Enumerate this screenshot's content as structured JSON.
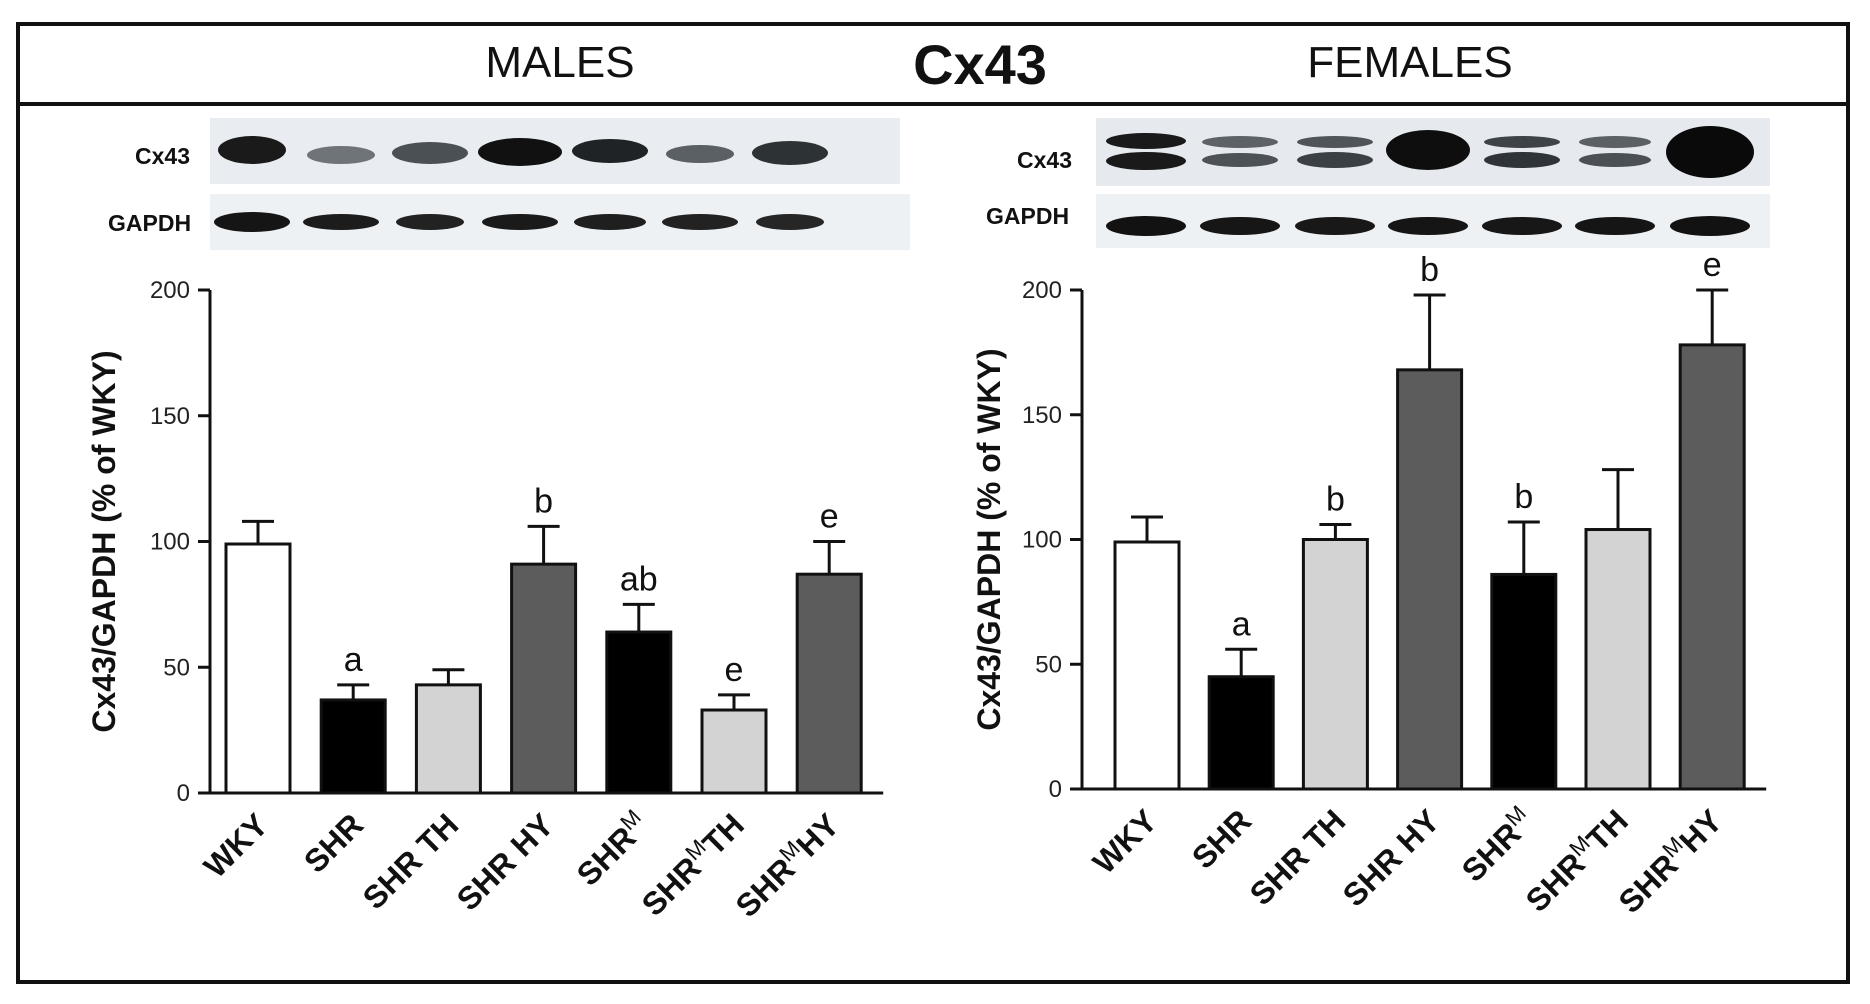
{
  "figure": {
    "title": "Cx43",
    "males_heading": "MALES",
    "females_heading": "FEMALES"
  },
  "blots": {
    "target_label": "Cx43",
    "loading_label": "GAPDH"
  },
  "colors": {
    "WKY": "#ffffff",
    "SHR": "#000000",
    "TH": "#d3d3d3",
    "HY": "#5c5c5c",
    "axis": "#111111"
  },
  "chart_data": [
    {
      "type": "bar",
      "panel": "MALES",
      "categories": [
        "WKY",
        "SHR",
        "SHR TH",
        "SHR HY",
        "SHR|M|",
        "SHR|M|TH",
        "SHR|M|HY"
      ],
      "values": [
        99,
        37,
        43,
        91,
        64,
        33,
        87
      ],
      "errors": [
        9,
        6,
        6,
        15,
        11,
        6,
        13
      ],
      "significance": [
        "",
        "a",
        "",
        "b",
        "ab",
        "e",
        "e"
      ],
      "bar_colors": [
        "#ffffff",
        "#000000",
        "#d3d3d3",
        "#5c5c5c",
        "#000000",
        "#d3d3d3",
        "#5c5c5c"
      ],
      "ylabel": "Cx43/GAPDH (% of WKY)",
      "ylim": [
        0,
        200
      ],
      "yticks": [
        0,
        50,
        100,
        150,
        200
      ],
      "grid": false
    },
    {
      "type": "bar",
      "panel": "FEMALES",
      "categories": [
        "WKY",
        "SHR",
        "SHR TH",
        "SHR HY",
        "SHR|M|",
        "SHR|M|TH",
        "SHR|M|HY"
      ],
      "values": [
        99,
        45,
        100,
        168,
        86,
        104,
        178
      ],
      "errors": [
        10,
        11,
        6,
        30,
        21,
        24,
        22
      ],
      "significance": [
        "",
        "a",
        "b",
        "b",
        "b",
        "",
        "e"
      ],
      "bar_colors": [
        "#ffffff",
        "#000000",
        "#d3d3d3",
        "#5c5c5c",
        "#000000",
        "#d3d3d3",
        "#5c5c5c"
      ],
      "ylabel": "Cx43/GAPDH (% of WKY)",
      "ylim": [
        0,
        200
      ],
      "yticks": [
        0,
        50,
        100,
        150,
        200
      ],
      "grid": false
    }
  ]
}
